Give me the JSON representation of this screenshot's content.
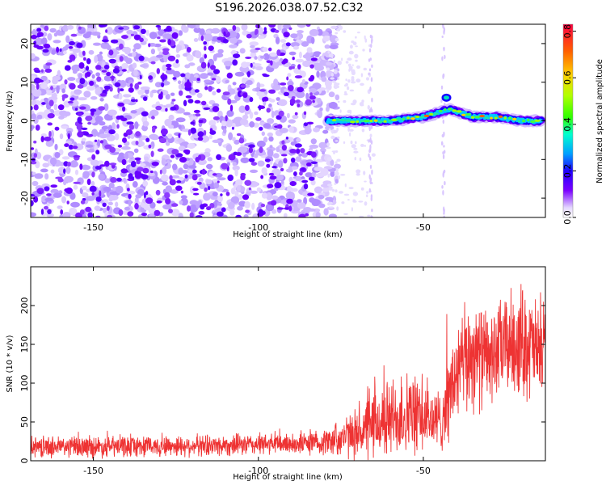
{
  "title": "S196.2026.038.07.52.C32",
  "colors": {
    "snr_line": "#ee3333",
    "speckle_dark": "#6a00ff",
    "speckle_light": "#d9c6ff",
    "frame": "#000000"
  },
  "chart_data": [
    {
      "type": "heatmap",
      "title": "S196.2026.038.07.52.C32",
      "xlabel": "Height of straight line (km)",
      "ylabel": "Frequency (Hz)",
      "xlim": [
        -169,
        -13
      ],
      "ylim": [
        -25,
        25
      ],
      "xticks": [
        -150,
        -100,
        -50
      ],
      "yticks": [
        -20,
        -10,
        0,
        10,
        20
      ],
      "colorbar": {
        "label": "Normalized spectral amplitude",
        "range": [
          0.0,
          0.83
        ],
        "ticks": [
          "0.0",
          "0.2",
          "0.4",
          "0.6",
          "0.8"
        ],
        "tick_values": [
          0.0,
          0.2,
          0.4,
          0.6,
          0.8
        ]
      },
      "signal_track": {
        "description": "narrow band of high amplitude near 0 Hz from about -79 km to -14 km",
        "x": [
          -79,
          -70,
          -60,
          -50,
          -42,
          -35,
          -28,
          -20,
          -14
        ],
        "freq": [
          0,
          0,
          0,
          1,
          3,
          1,
          1,
          0,
          0
        ],
        "peak_amplitude": [
          0.4,
          0.55,
          0.6,
          0.7,
          0.8,
          0.75,
          0.8,
          0.7,
          0.65
        ]
      },
      "noise_region": {
        "x_range": [
          -169,
          -79
        ],
        "amplitude_range": [
          0.02,
          0.1
        ]
      }
    },
    {
      "type": "line",
      "xlabel": "Height of straight line (km)",
      "ylabel": "SNR (10 * v/v)",
      "xlim": [
        -169,
        -13
      ],
      "ylim": [
        0,
        250
      ],
      "xticks": [
        -150,
        -100,
        -50
      ],
      "yticks": [
        0,
        50,
        100,
        150,
        200
      ],
      "series": [
        {
          "name": "SNR",
          "x": [
            -169,
            -150,
            -130,
            -110,
            -90,
            -80,
            -70,
            -65,
            -60,
            -55,
            -50,
            -45,
            -40,
            -35,
            -30,
            -25,
            -20,
            -15,
            -13
          ],
          "mean": [
            18,
            18,
            19,
            20,
            22,
            24,
            35,
            45,
            55,
            60,
            55,
            50,
            110,
            140,
            130,
            150,
            155,
            140,
            150
          ],
          "spread": [
            15,
            15,
            15,
            15,
            15,
            18,
            35,
            50,
            55,
            60,
            50,
            45,
            75,
            80,
            65,
            70,
            80,
            70,
            70
          ]
        }
      ]
    }
  ]
}
